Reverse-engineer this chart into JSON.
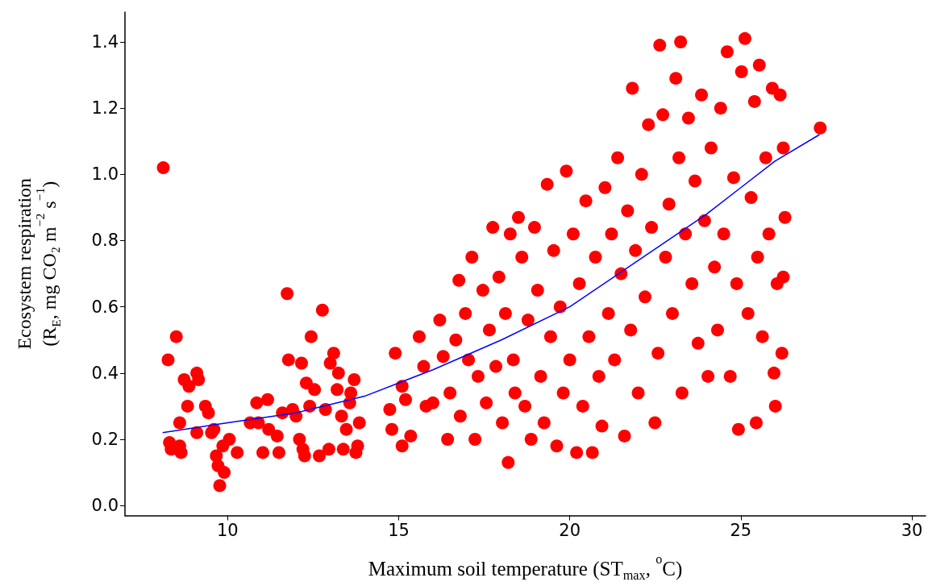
{
  "chart_data": {
    "type": "scatter",
    "xlabel": "Maximum soil temperature (ST$_{max}$, $^{o}$C)",
    "ylabel": "Ecosystem respiration\n(R$_{E}$, mg CO₂ m$^{−2}$ s$^{−1}$)",
    "xlim": [
      7,
      30.4
    ],
    "xticks": [
      10,
      15,
      20,
      25,
      30
    ],
    "ylim": [
      -0.03,
      1.49
    ],
    "yticks": [
      {
        "value": 0,
        "label": "0.0"
      },
      0.2,
      0.4,
      0.6,
      0.8,
      {
        "value": 1,
        "label": "1.0"
      },
      1.2,
      1.4
    ],
    "grid": false,
    "marker": "circle",
    "series": [
      {
        "color": "#ff0000",
        "x": [
          8.12,
          8.26,
          8.5,
          8.3,
          8.35,
          8.6,
          8.64,
          8.6,
          8.73,
          8.83,
          8.87,
          9.1,
          9.15,
          9.1,
          9.35,
          9.44,
          9.53,
          9.6,
          9.67,
          9.72,
          9.77,
          9.9,
          9.86,
          10.05,
          10.28,
          10.66,
          10.85,
          10.9,
          11.03,
          11.17,
          11.2,
          11.45,
          11.5,
          11.6,
          11.74,
          11.78,
          11.9,
          12.0,
          12.1,
          12.16,
          12.2,
          12.25,
          12.3,
          12.4,
          12.44,
          12.54,
          12.68,
          12.77,
          12.86,
          12.96,
          13.0,
          13.1,
          13.2,
          13.24,
          13.33,
          13.38,
          13.47,
          13.57,
          13.6,
          13.7,
          13.75,
          13.85,
          13.8,
          14.9,
          14.74,
          14.8,
          15.1,
          15.1,
          15.2,
          15.35,
          15.6,
          15.73,
          15.8,
          16.0,
          16.2,
          16.3,
          16.43,
          16.5,
          16.67,
          16.76,
          16.8,
          16.95,
          17.04,
          17.14,
          17.23,
          17.32,
          17.46,
          17.56,
          17.65,
          17.75,
          17.84,
          17.93,
          18.03,
          18.12,
          18.2,
          18.26,
          18.35,
          18.4,
          18.5,
          18.6,
          18.69,
          18.78,
          18.87,
          18.97,
          19.06,
          19.15,
          19.25,
          19.34,
          19.44,
          19.53,
          19.62,
          19.72,
          19.81,
          19.9,
          20.0,
          20.1,
          20.2,
          20.28,
          20.38,
          20.47,
          20.56,
          20.66,
          20.75,
          20.85,
          20.94,
          21.03,
          21.13,
          21.22,
          21.31,
          21.4,
          21.5,
          21.6,
          21.69,
          21.78,
          21.83,
          21.92,
          22.0,
          22.1,
          22.2,
          22.3,
          22.39,
          22.49,
          22.58,
          22.63,
          22.72,
          22.8,
          22.9,
          23.0,
          23.1,
          23.19,
          23.24,
          23.28,
          23.38,
          23.47,
          23.57,
          23.66,
          23.75,
          23.85,
          23.94,
          24.04,
          24.13,
          24.23,
          24.32,
          24.41,
          24.5,
          24.6,
          24.69,
          24.79,
          24.88,
          24.93,
          25.02,
          25.12,
          25.21,
          25.3,
          25.4,
          25.45,
          25.49,
          25.54,
          25.63,
          25.73,
          25.82,
          25.92,
          25.97,
          26.01,
          26.06,
          26.15,
          26.2,
          26.24,
          26.29,
          26.24,
          27.32
        ],
        "values": [
          1.02,
          0.44,
          0.51,
          0.19,
          0.17,
          0.18,
          0.16,
          0.25,
          0.38,
          0.3,
          0.36,
          0.4,
          0.38,
          0.22,
          0.3,
          0.28,
          0.22,
          0.23,
          0.15,
          0.12,
          0.06,
          0.1,
          0.18,
          0.2,
          0.16,
          0.25,
          0.31,
          0.25,
          0.16,
          0.32,
          0.23,
          0.21,
          0.16,
          0.28,
          0.64,
          0.44,
          0.29,
          0.27,
          0.2,
          0.43,
          0.17,
          0.15,
          0.37,
          0.3,
          0.51,
          0.35,
          0.15,
          0.59,
          0.29,
          0.17,
          0.43,
          0.46,
          0.35,
          0.4,
          0.27,
          0.17,
          0.23,
          0.31,
          0.34,
          0.38,
          0.16,
          0.25,
          0.18,
          0.46,
          0.29,
          0.23,
          0.36,
          0.18,
          0.32,
          0.21,
          0.51,
          0.42,
          0.3,
          0.31,
          0.56,
          0.45,
          0.2,
          0.34,
          0.5,
          0.68,
          0.27,
          0.58,
          0.44,
          0.75,
          0.2,
          0.39,
          0.65,
          0.31,
          0.53,
          0.84,
          0.42,
          0.69,
          0.25,
          0.58,
          0.13,
          0.82,
          0.44,
          0.34,
          0.87,
          0.75,
          0.3,
          0.56,
          0.2,
          0.84,
          0.65,
          0.39,
          0.25,
          0.97,
          0.51,
          0.77,
          0.18,
          0.6,
          0.34,
          1.01,
          0.44,
          0.82,
          0.16,
          0.67,
          0.3,
          0.92,
          0.51,
          0.16,
          0.75,
          0.39,
          0.24,
          0.96,
          0.58,
          0.82,
          0.44,
          1.05,
          0.7,
          0.21,
          0.89,
          0.53,
          1.26,
          0.77,
          0.34,
          1.0,
          0.63,
          1.15,
          0.84,
          0.25,
          0.46,
          1.39,
          1.18,
          0.75,
          0.91,
          0.58,
          1.29,
          1.05,
          1.4,
          0.34,
          0.82,
          1.17,
          0.67,
          0.98,
          0.49,
          1.24,
          0.86,
          0.39,
          1.08,
          0.72,
          0.53,
          1.2,
          0.82,
          1.37,
          0.39,
          0.99,
          0.67,
          0.23,
          1.31,
          1.41,
          0.58,
          0.93,
          1.22,
          0.25,
          0.75,
          1.33,
          0.51,
          1.05,
          0.82,
          1.26,
          0.4,
          0.3,
          0.67,
          1.24,
          0.46,
          1.08,
          0.87,
          0.69,
          1.14
        ]
      },
      {
        "type": "line",
        "color": "#0000ff",
        "marker": "none",
        "line_style": "solid",
        "x": [
          8.1,
          10,
          12,
          14,
          16,
          18,
          20,
          22,
          24,
          25,
          26,
          27.3
        ],
        "values": [
          0.22,
          0.25,
          0.28,
          0.33,
          0.41,
          0.5,
          0.6,
          0.74,
          0.88,
          0.96,
          1.04,
          1.12
        ]
      }
    ]
  }
}
